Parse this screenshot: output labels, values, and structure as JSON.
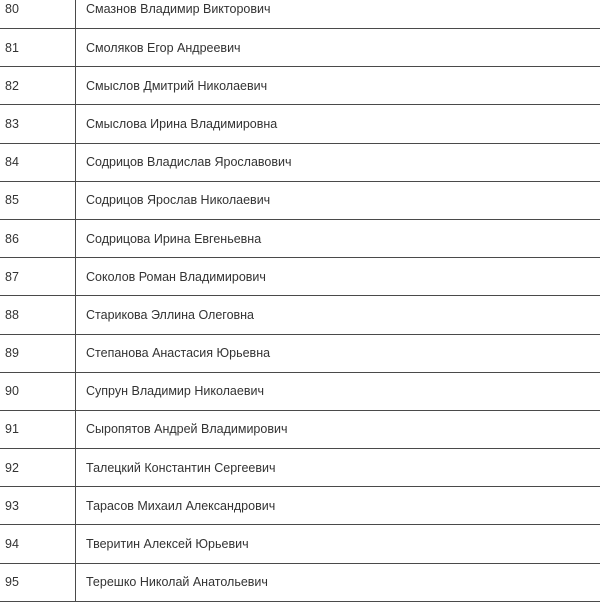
{
  "rows": [
    {
      "num": "80",
      "name": "Смазнов Владимир Викторович"
    },
    {
      "num": "81",
      "name": "Смоляков Егор Андреевич"
    },
    {
      "num": "82",
      "name": "Смыслов Дмитрий Николаевич"
    },
    {
      "num": "83",
      "name": "Смыслова Ирина Владимировна"
    },
    {
      "num": "84",
      "name": "Содрицов Владислав Ярославович"
    },
    {
      "num": "85",
      "name": "Содрицов Ярослав Николаевич"
    },
    {
      "num": "86",
      "name": "Содрицова Ирина Евгеньевна"
    },
    {
      "num": "87",
      "name": "Соколов Роман Владимирович"
    },
    {
      "num": "88",
      "name": "Старикова Эллина Олеговна"
    },
    {
      "num": "89",
      "name": "Степанова Анастасия Юрьевна"
    },
    {
      "num": "90",
      "name": "Супрун Владимир Николаевич"
    },
    {
      "num": "91",
      "name": "Сыропятов Андрей Владимирович"
    },
    {
      "num": "92",
      "name": "Талецкий Константин Сергеевич"
    },
    {
      "num": "93",
      "name": "Тарасов Михаил Александрович"
    },
    {
      "num": "94",
      "name": "Тверитин Алексей Юрьевич"
    },
    {
      "num": "95",
      "name": "Терешко Николай Анатольевич"
    }
  ]
}
